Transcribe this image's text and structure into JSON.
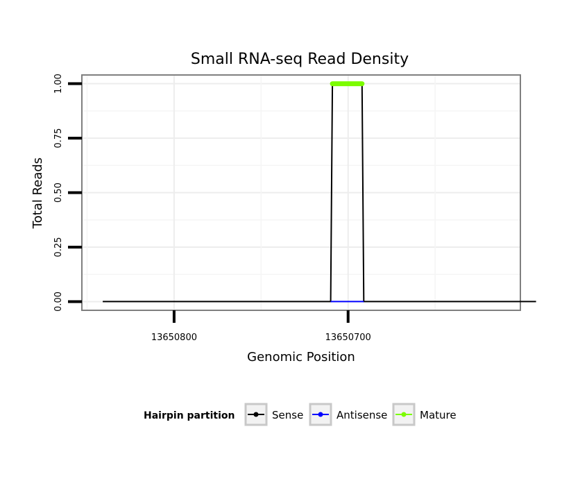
{
  "chart_data": {
    "type": "line",
    "title": "Small RNA-seq Read Density",
    "xlabel": "Genomic Position",
    "ylabel": "Total Reads",
    "x_reversed": true,
    "xlim": [
      13650853,
      13650601
    ],
    "ylim": [
      -0.04,
      1.04
    ],
    "x_ticks": [
      {
        "value": 13650800,
        "label": "13650800"
      },
      {
        "value": 13650700,
        "label": "13650700"
      }
    ],
    "y_ticks": [
      {
        "value": 0,
        "label": "0.00"
      },
      {
        "value": 0.25,
        "label": "0.25"
      },
      {
        "value": 0.5,
        "label": "0.50"
      },
      {
        "value": 0.75,
        "label": "0.75"
      },
      {
        "value": 1,
        "label": "1.00"
      }
    ],
    "legend": {
      "title": "Hairpin partition",
      "position": "bottom",
      "entries": [
        "Sense",
        "Antisense",
        "Mature"
      ]
    },
    "series": [
      {
        "name": "Sense",
        "color": "#000000",
        "points": [
          [
            13650841,
            0
          ],
          [
            13650710,
            0
          ],
          [
            13650709,
            1
          ],
          [
            13650692,
            1
          ],
          [
            13650691,
            0
          ],
          [
            13650592,
            0
          ]
        ]
      },
      {
        "name": "Antisense",
        "color": "#0000ff",
        "points": [
          [
            13650710,
            0
          ],
          [
            13650691,
            0
          ]
        ]
      },
      {
        "name": "Mature",
        "color": "#7cfc00",
        "points": [
          [
            13650709,
            1
          ],
          [
            13650692,
            1
          ]
        ]
      }
    ]
  }
}
